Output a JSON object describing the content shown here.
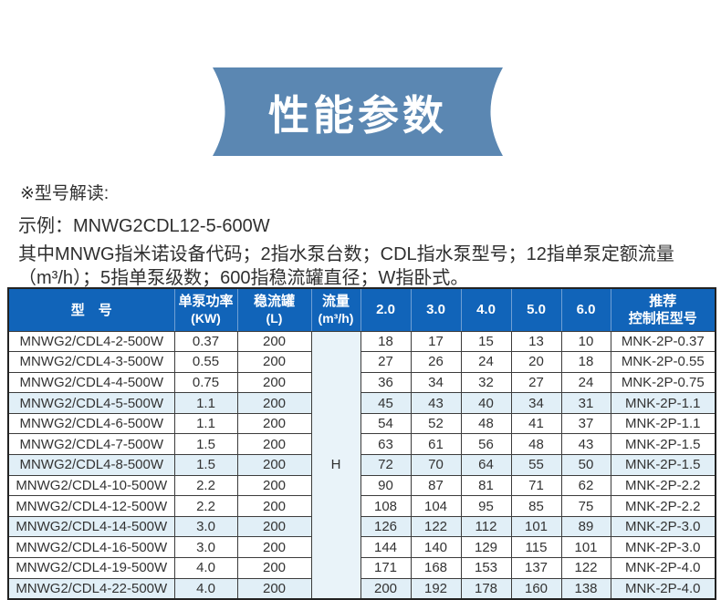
{
  "banner": {
    "title": "性能参数"
  },
  "notes": {
    "heading": "※型号解读:",
    "example": "示例：MNWG2CDL12-5-600W",
    "description": "其中MNWG指米诺设备代码；2指水泵台数；CDL指水泵型号；12指单泵定额流量（m³/h）；5指单泵级数；600指稳流罐直径；W指卧式。"
  },
  "table": {
    "header": {
      "model": "型　号",
      "power_line1": "单泵功率",
      "power_line2": "(KW)",
      "tank_line1": "稳流罐",
      "tank_line2": "(L)",
      "flow_line1": "流量",
      "flow_line2": "(m³/h)",
      "flow_points": [
        "2.0",
        "3.0",
        "4.0",
        "5.0",
        "6.0"
      ],
      "cabinet_line1": "推荐",
      "cabinet_line2": "控制柜型号"
    },
    "flow_merged_value": "H",
    "rows": [
      {
        "model": "MNWG2/CDL4-2-500W",
        "power": "0.37",
        "tank": "200",
        "values": [
          "18",
          "17",
          "15",
          "13",
          "10"
        ],
        "cabinet": "MNK-2P-0.37",
        "shaded": false
      },
      {
        "model": "MNWG2/CDL4-3-500W",
        "power": "0.55",
        "tank": "200",
        "values": [
          "27",
          "26",
          "24",
          "20",
          "18"
        ],
        "cabinet": "MNK-2P-0.55",
        "shaded": false
      },
      {
        "model": "MNWG2/CDL4-4-500W",
        "power": "0.75",
        "tank": "200",
        "values": [
          "36",
          "34",
          "32",
          "27",
          "24"
        ],
        "cabinet": "MNK-2P-0.75",
        "shaded": false
      },
      {
        "model": "MNWG2/CDL4-5-500W",
        "power": "1.1",
        "tank": "200",
        "values": [
          "45",
          "43",
          "40",
          "34",
          "31"
        ],
        "cabinet": "MNK-2P-1.1",
        "shaded": true
      },
      {
        "model": "MNWG2/CDL4-6-500W",
        "power": "1.1",
        "tank": "200",
        "values": [
          "54",
          "52",
          "48",
          "41",
          "37"
        ],
        "cabinet": "MNK-2P-1.1",
        "shaded": false
      },
      {
        "model": "MNWG2/CDL4-7-500W",
        "power": "1.5",
        "tank": "200",
        "values": [
          "63",
          "61",
          "56",
          "48",
          "43"
        ],
        "cabinet": "MNK-2P-1.5",
        "shaded": false
      },
      {
        "model": "MNWG2/CDL4-8-500W",
        "power": "1.5",
        "tank": "200",
        "values": [
          "72",
          "70",
          "64",
          "55",
          "50"
        ],
        "cabinet": "MNK-2P-1.5",
        "shaded": true
      },
      {
        "model": "MNWG2/CDL4-10-500W",
        "power": "2.2",
        "tank": "200",
        "values": [
          "90",
          "87",
          "81",
          "71",
          "62"
        ],
        "cabinet": "MNK-2P-2.2",
        "shaded": false
      },
      {
        "model": "MNWG2/CDL4-12-500W",
        "power": "2.2",
        "tank": "200",
        "values": [
          "108",
          "104",
          "95",
          "85",
          "75"
        ],
        "cabinet": "MNK-2P-2.2",
        "shaded": false
      },
      {
        "model": "MNWG2/CDL4-14-500W",
        "power": "3.0",
        "tank": "200",
        "values": [
          "126",
          "122",
          "112",
          "101",
          "89"
        ],
        "cabinet": "MNK-2P-3.0",
        "shaded": true
      },
      {
        "model": "MNWG2/CDL4-16-500W",
        "power": "3.0",
        "tank": "200",
        "values": [
          "144",
          "140",
          "129",
          "115",
          "101"
        ],
        "cabinet": "MNK-2P-3.0",
        "shaded": false
      },
      {
        "model": "MNWG2/CDL4-19-500W",
        "power": "4.0",
        "tank": "200",
        "values": [
          "171",
          "168",
          "153",
          "137",
          "122"
        ],
        "cabinet": "MNK-2P-4.0",
        "shaded": false
      },
      {
        "model": "MNWG2/CDL4-22-500W",
        "power": "4.0",
        "tank": "200",
        "values": [
          "200",
          "192",
          "178",
          "160",
          "138"
        ],
        "cabinet": "MNK-2P-4.0",
        "shaded": true
      }
    ]
  },
  "colors": {
    "banner-bg": "#5b87b2",
    "header-bg": "#1164b9",
    "header-sep": "#6f9fd4",
    "row-alt-bg": "#e1eff7",
    "flow-cell-bg": "#e9f3f9",
    "border-dark": "#3c3c3c",
    "text-dark": "#333333"
  }
}
